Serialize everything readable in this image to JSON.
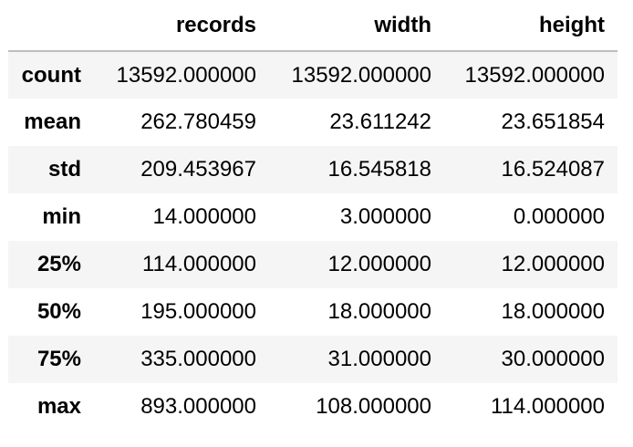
{
  "table": {
    "columns": [
      "records",
      "width",
      "height"
    ],
    "rows": [
      {
        "index": "count",
        "values": [
          "13592.000000",
          "13592.000000",
          "13592.000000"
        ]
      },
      {
        "index": "mean",
        "values": [
          "262.780459",
          "23.611242",
          "23.651854"
        ]
      },
      {
        "index": "std",
        "values": [
          "209.453967",
          "16.545818",
          "16.524087"
        ]
      },
      {
        "index": "min",
        "values": [
          "14.000000",
          "3.000000",
          "0.000000"
        ]
      },
      {
        "index": "25%",
        "values": [
          "114.000000",
          "12.000000",
          "12.000000"
        ]
      },
      {
        "index": "50%",
        "values": [
          "195.000000",
          "18.000000",
          "18.000000"
        ]
      },
      {
        "index": "75%",
        "values": [
          "335.000000",
          "31.000000",
          "30.000000"
        ]
      },
      {
        "index": "max",
        "values": [
          "893.000000",
          "108.000000",
          "114.000000"
        ]
      }
    ]
  }
}
